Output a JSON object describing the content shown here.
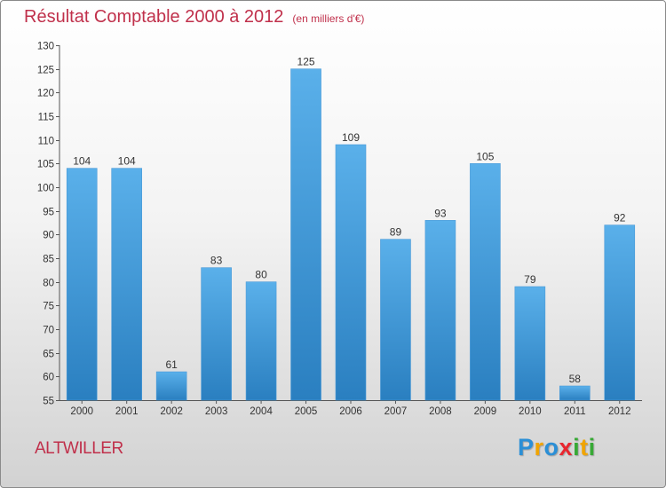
{
  "chart_data": {
    "type": "bar",
    "title": "Résultat Comptable 2000 à 2012",
    "subtitle": "(en milliers d'€)",
    "categories": [
      "2000",
      "2001",
      "2002",
      "2003",
      "2004",
      "2005",
      "2006",
      "2007",
      "2008",
      "2009",
      "2010",
      "2011",
      "2012"
    ],
    "values": [
      104,
      104,
      61,
      83,
      80,
      125,
      109,
      89,
      93,
      105,
      79,
      58,
      92
    ],
    "ylim": [
      55,
      130
    ],
    "yticks": [
      55,
      60,
      65,
      70,
      75,
      80,
      85,
      90,
      95,
      100,
      105,
      110,
      115,
      120,
      125,
      130
    ],
    "xlabel": "",
    "ylabel": "",
    "grid": false,
    "bar_color_top": "#5ab0ea",
    "bar_color_bottom": "#2a7fc0"
  },
  "commune": "ALTWILLER",
  "logo": {
    "text": "Proxiti",
    "letters": [
      {
        "ch": "P",
        "color": "#2b8fd6"
      },
      {
        "ch": "r",
        "color": "#f0a400"
      },
      {
        "ch": "o",
        "color": "#2b8fd6"
      },
      {
        "ch": "x",
        "color": "#e8262f"
      },
      {
        "ch": "i",
        "color": "#37a935"
      },
      {
        "ch": "t",
        "color": "#f0a400"
      },
      {
        "ch": "i",
        "color": "#37a935"
      }
    ]
  }
}
